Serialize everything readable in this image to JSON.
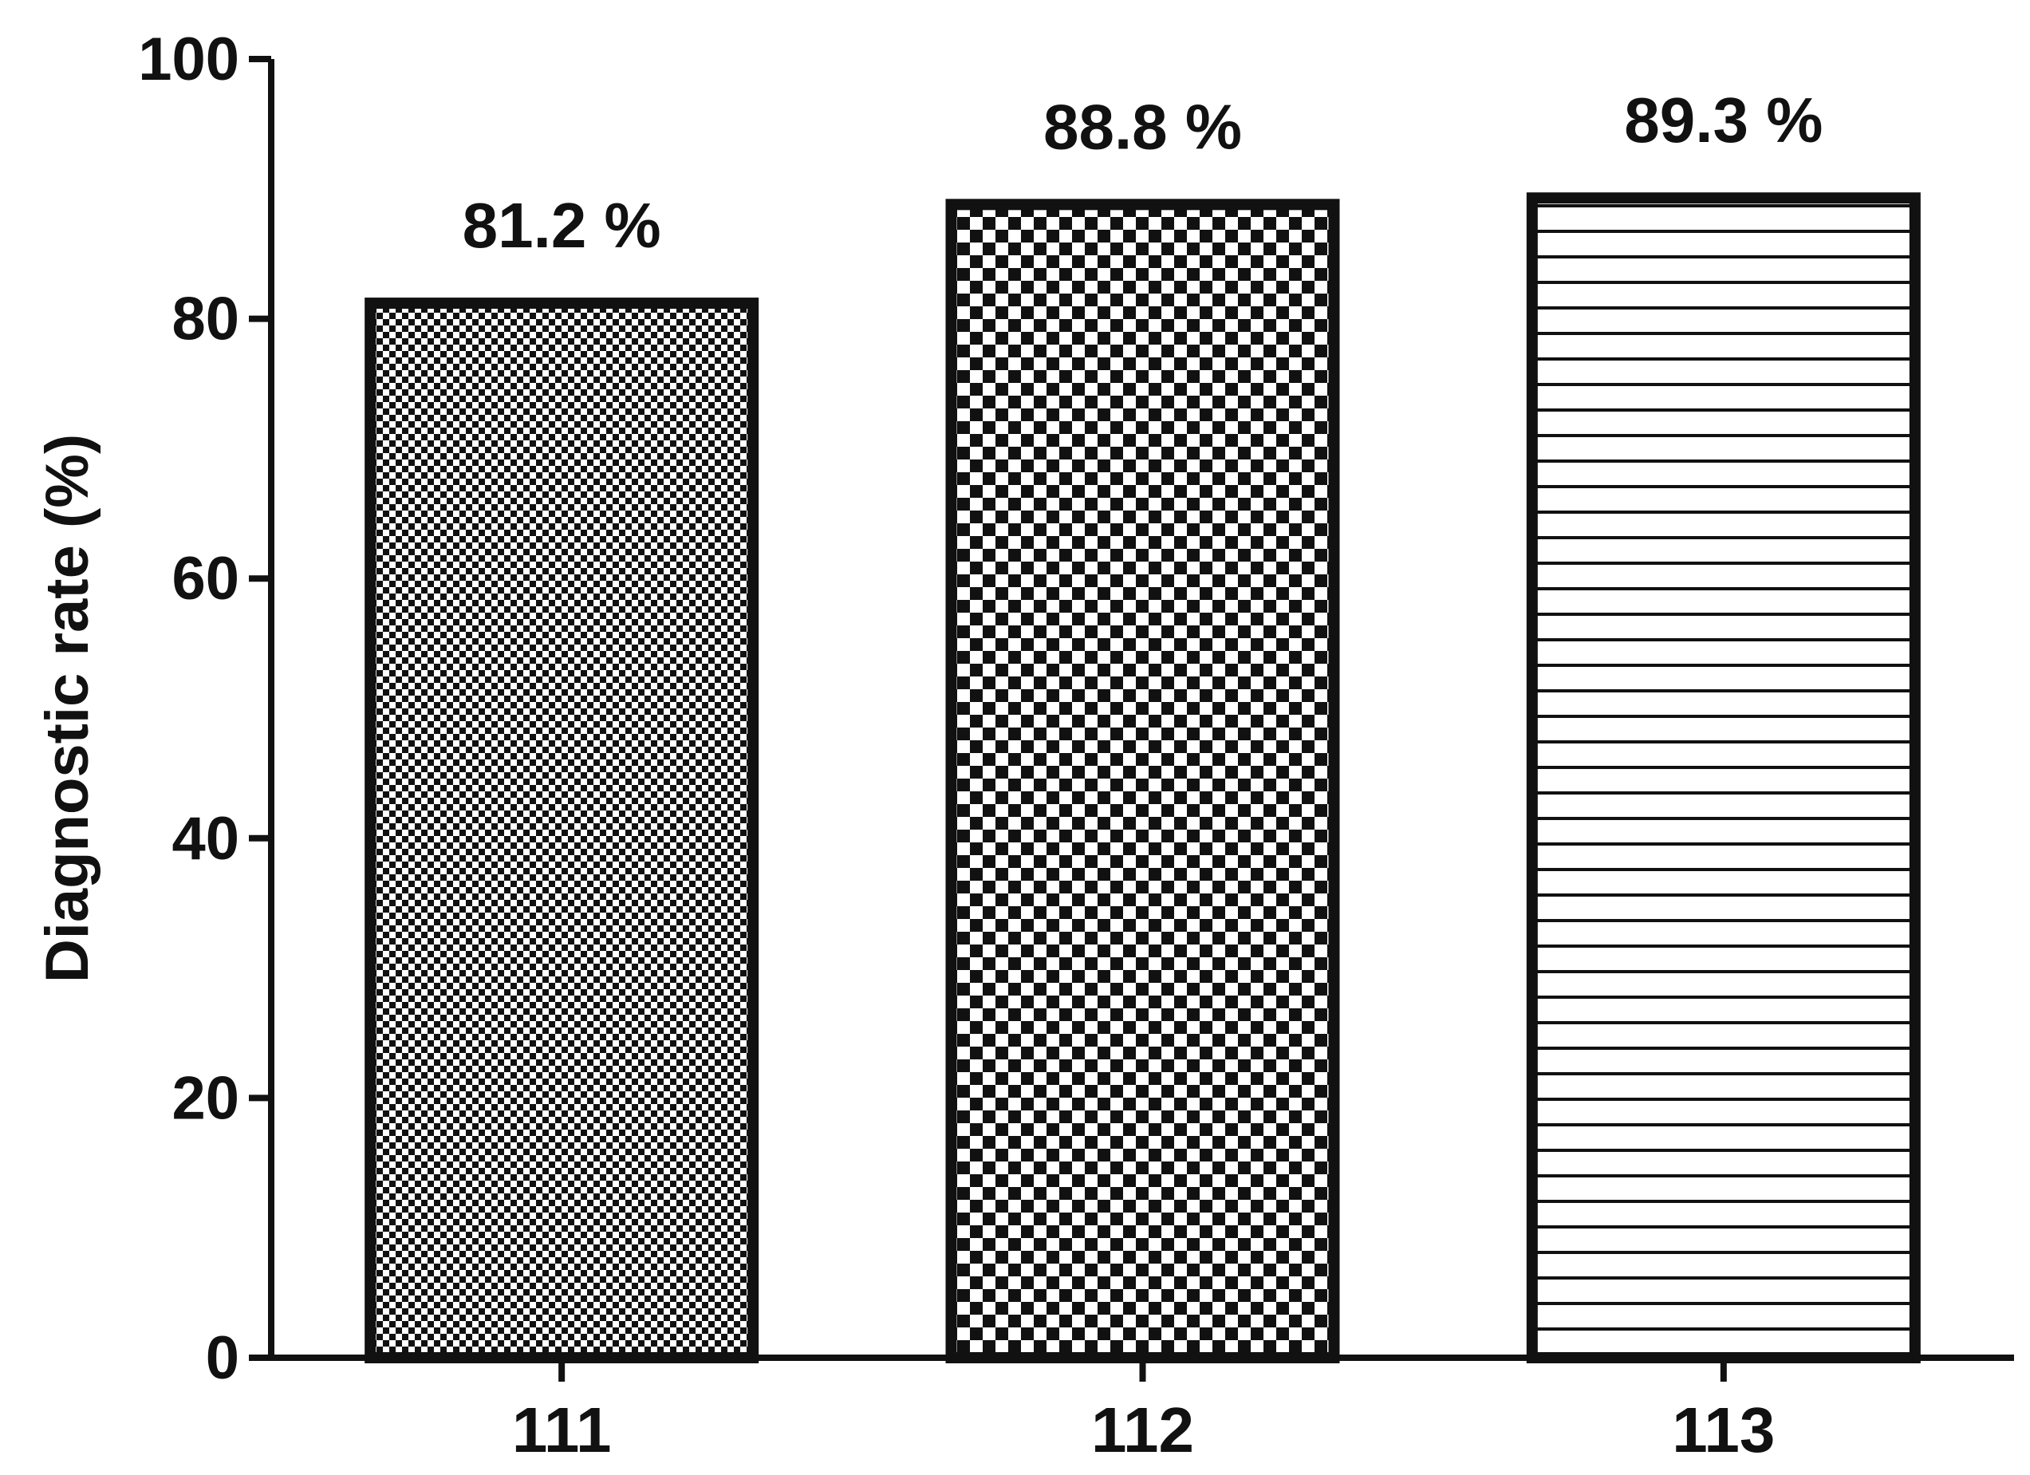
{
  "chart_data": {
    "type": "bar",
    "categories": [
      "111",
      "112",
      "113"
    ],
    "values": [
      81.2,
      88.8,
      89.3
    ],
    "value_labels": [
      "81.2 %",
      "88.8 %",
      "89.3 %"
    ],
    "ylabel": "Diagnostic rate (%)",
    "xlabel": "",
    "title": "",
    "ylim": [
      0,
      100
    ],
    "yticks": [
      0,
      20,
      40,
      60,
      80,
      100
    ],
    "grid": false,
    "legend": "none",
    "fill_patterns": [
      "fine-checker",
      "coarse-checker",
      "horizontal-lines"
    ],
    "colors": {
      "stroke": "#111111",
      "fill_dark": "#111111",
      "background": "#ffffff"
    }
  }
}
